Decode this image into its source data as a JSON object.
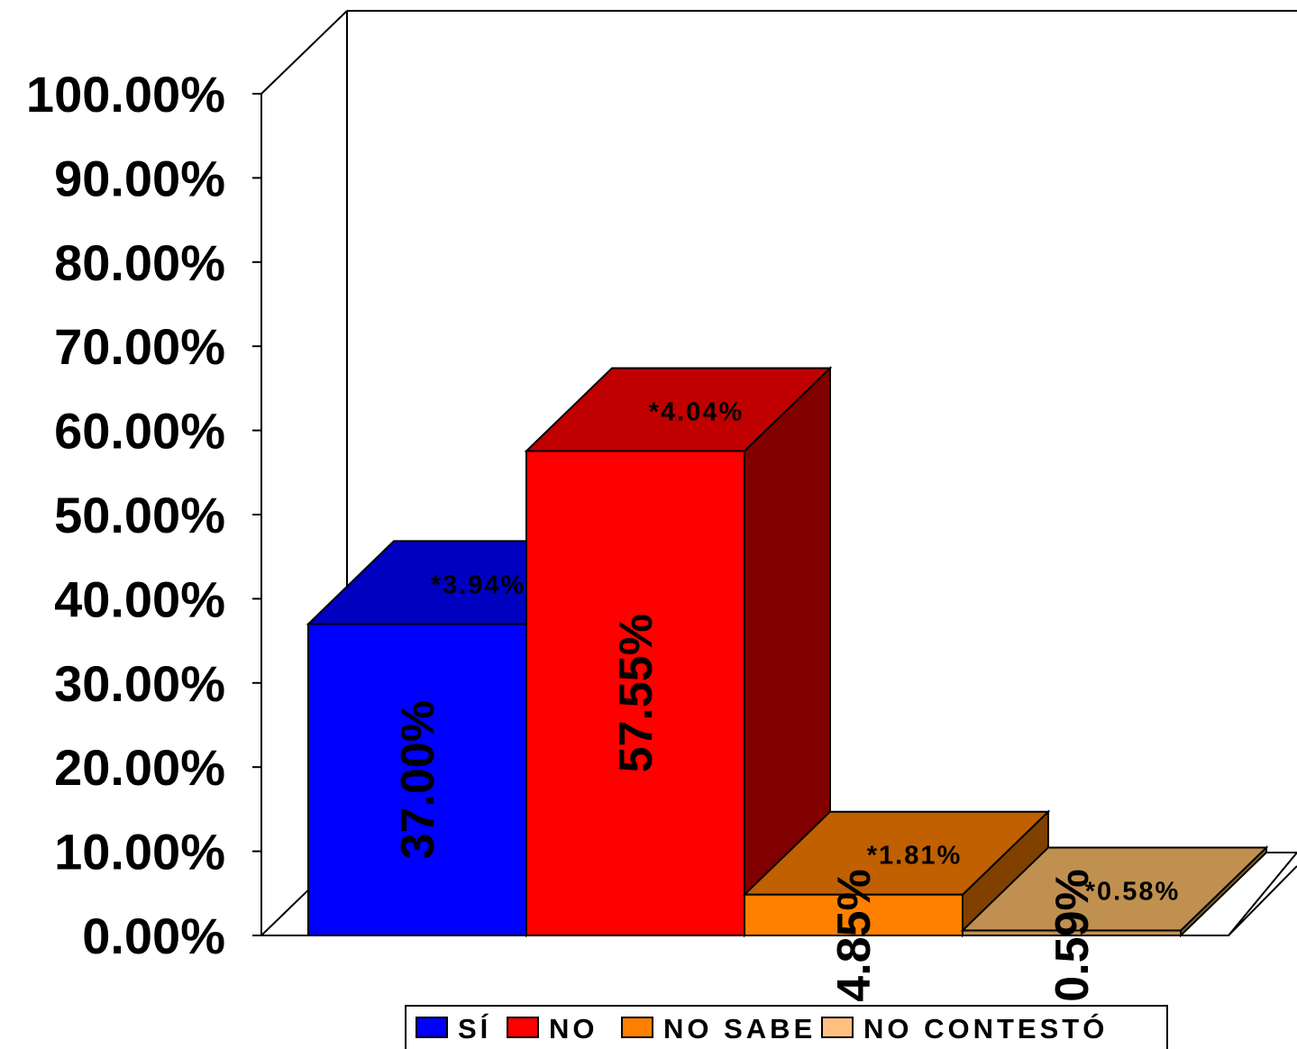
{
  "chart_data": {
    "type": "bar",
    "categories": [
      "SÍ",
      "NO",
      "NO SABE",
      "NO CONTESTÓ"
    ],
    "values": [
      37.0,
      57.55,
      4.85,
      0.59
    ],
    "value_labels": [
      "37.00%",
      "57.55%",
      "4.85%",
      "0.59%"
    ],
    "top_labels": [
      "*3.94%",
      "*4.04%",
      "*1.81%",
      "*0.58%"
    ],
    "colors": {
      "front": [
        "#0000ff",
        "#ff0000",
        "#ff8000",
        "#c09050"
      ],
      "top": [
        "#0000c0",
        "#c00000",
        "#c06000",
        "#c09050"
      ],
      "side": [
        "#000080",
        "#800000",
        "#804000",
        "#806030"
      ]
    },
    "ylim": [
      0,
      100
    ],
    "yticks": [
      "0.00%",
      "10.00%",
      "20.00%",
      "30.00%",
      "40.00%",
      "50.00%",
      "60.00%",
      "70.00%",
      "80.00%",
      "90.00%",
      "100.00%"
    ],
    "legend": {
      "position": "bottom",
      "items": [
        {
          "label": "SÍ",
          "color": "#0000ff"
        },
        {
          "label": "NO",
          "color": "#ff0000"
        },
        {
          "label": "NO SABE",
          "color": "#ff8000"
        },
        {
          "label": "NO CONTESTÓ",
          "color": "#ffc080"
        }
      ]
    },
    "style": "3d-bar"
  }
}
